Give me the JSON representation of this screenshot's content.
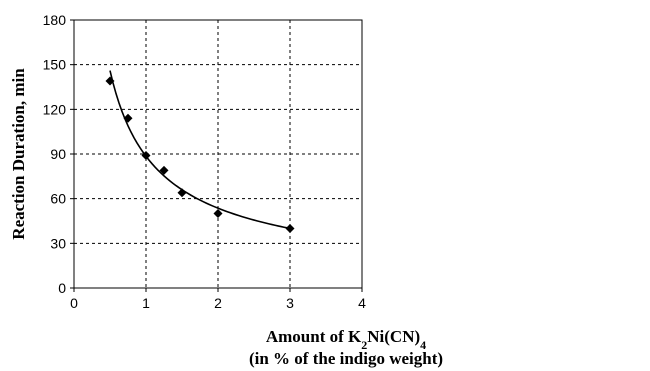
{
  "chart_data": {
    "type": "scatter",
    "title": "",
    "ylabel": "Reaction Duration, min",
    "xlabel": {
      "prefix": "Amount of K",
      "sub1": "2",
      "middle": "Ni(CN)",
      "sub2": "4",
      "line2": "(in % of the indigo weight)"
    },
    "xlim": [
      0,
      4
    ],
    "ylim": [
      0,
      180
    ],
    "x_ticks": [
      "0",
      "1",
      "2",
      "3",
      "4"
    ],
    "y_ticks": [
      "0",
      "30",
      "60",
      "90",
      "120",
      "150",
      "180"
    ],
    "grid": true,
    "grid_style": "dashed",
    "series": [
      {
        "marker": "diamond",
        "x": [
          0.5,
          0.75,
          1.0,
          1.25,
          1.5,
          2.0,
          3.0
        ],
        "y": [
          139,
          114,
          89,
          79,
          64,
          50,
          40
        ]
      }
    ],
    "trendline": {
      "type": "power",
      "x_range": [
        0.5,
        3.0
      ],
      "y_at_start": 146,
      "y_at_end": 40
    },
    "colors": {
      "marker": "#000000",
      "line": "#000000",
      "grid": "#000000"
    }
  }
}
